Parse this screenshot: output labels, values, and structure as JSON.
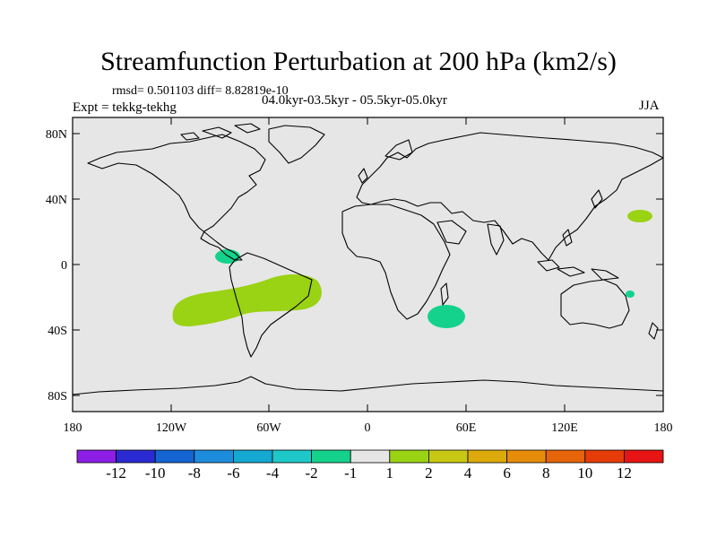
{
  "title": "Streamfunction Perturbation at 200 hPa (km2/s)",
  "stats_line": "rmsd= 0.501103 diff= 8.82819e-10",
  "experiment": "Expt = tekkg-tekhg",
  "period": "04.0kyr-03.5kyr - 05.5kyr-05.0kyr",
  "season": "JJA",
  "map": {
    "lat_ticks": [
      "80N",
      "40N",
      "0",
      "40S",
      "80S"
    ],
    "lon_ticks": [
      "180",
      "120W",
      "60W",
      "0",
      "60E",
      "120E",
      "180"
    ]
  },
  "colorbar": {
    "colors": [
      "#8c1ee6",
      "#2a2ad2",
      "#1464d2",
      "#1e8cdc",
      "#14a8d2",
      "#1ec8c8",
      "#14d28c",
      "#e6e6e6",
      "#9ad214",
      "#c8c814",
      "#dcaa0a",
      "#e68c0a",
      "#e6640a",
      "#e63c0a",
      "#e61414"
    ],
    "labels": [
      "-12",
      "-10",
      "-8",
      "-6",
      "-4",
      "-2",
      "-1",
      "1",
      "2",
      "4",
      "6",
      "8",
      "10",
      "12"
    ]
  },
  "anomalies": [
    {
      "name": "central-america-negative",
      "color": "#14d28c",
      "level": "-2 to -1"
    },
    {
      "name": "south-america-positive",
      "color": "#9ad214",
      "level": "1 to 2"
    },
    {
      "name": "madagascar-negative",
      "color": "#14d28c",
      "level": "-2 to -1"
    },
    {
      "name": "north-pacific-positive",
      "color": "#9ad214",
      "level": "1 to 2"
    },
    {
      "name": "coral-sea-negative",
      "color": "#14d28c",
      "level": "-2 to -1"
    }
  ]
}
